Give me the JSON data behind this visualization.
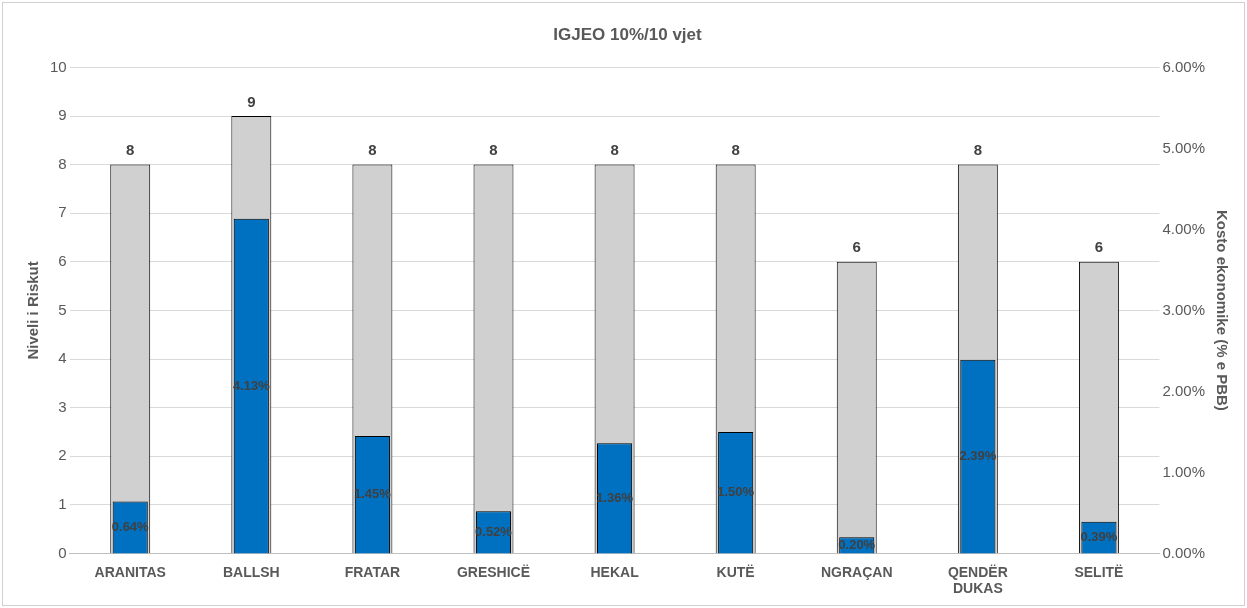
{
  "chart_data": {
    "type": "bar",
    "title": "IGJEO 10%/10 vjet",
    "ylabel": "Niveli i Riskut",
    "y2label": "Kosto ekonomike (% e PBB)",
    "categories": [
      "ARANITAS",
      "BALLSH",
      "FRATAR",
      "GRESHICË",
      "HEKAL",
      "KUTË",
      "NGRAÇAN",
      "QENDËR DUKAS",
      "SELITË"
    ],
    "series": [
      {
        "color": "#d0d0d0",
        "values": [
          8,
          9,
          8,
          8,
          8,
          8,
          6,
          8,
          6
        ],
        "value_labels": [
          "8",
          "9",
          "8",
          "8",
          "8",
          "8",
          "6",
          "8",
          "6"
        ]
      },
      {
        "color": "#0070c0",
        "axis": "y2",
        "values": [
          0.64,
          4.13,
          1.45,
          0.52,
          1.36,
          1.5,
          0.2,
          2.39,
          0.39
        ],
        "value_labels": [
          "0.64%",
          "4.13%",
          "1.45%",
          "0.52%",
          "1.36%",
          "1.50%",
          "0.20%",
          "2.39%",
          "0.39%"
        ]
      }
    ],
    "ylim": [
      0,
      10
    ],
    "yticks": [
      0,
      1,
      2,
      3,
      4,
      5,
      6,
      7,
      8,
      9,
      10
    ],
    "y2lim": [
      0,
      6
    ],
    "y2ticks": [
      {
        "value": 0,
        "label": "0.00%"
      },
      {
        "value": 1,
        "label": "1.00%"
      },
      {
        "value": 2,
        "label": "2.00%"
      },
      {
        "value": 3,
        "label": "3.00%"
      },
      {
        "value": 4,
        "label": "4.00%"
      },
      {
        "value": 5,
        "label": "5.00%"
      },
      {
        "value": 6,
        "label": "6.00%"
      }
    ],
    "grid": "y",
    "legend": false
  }
}
